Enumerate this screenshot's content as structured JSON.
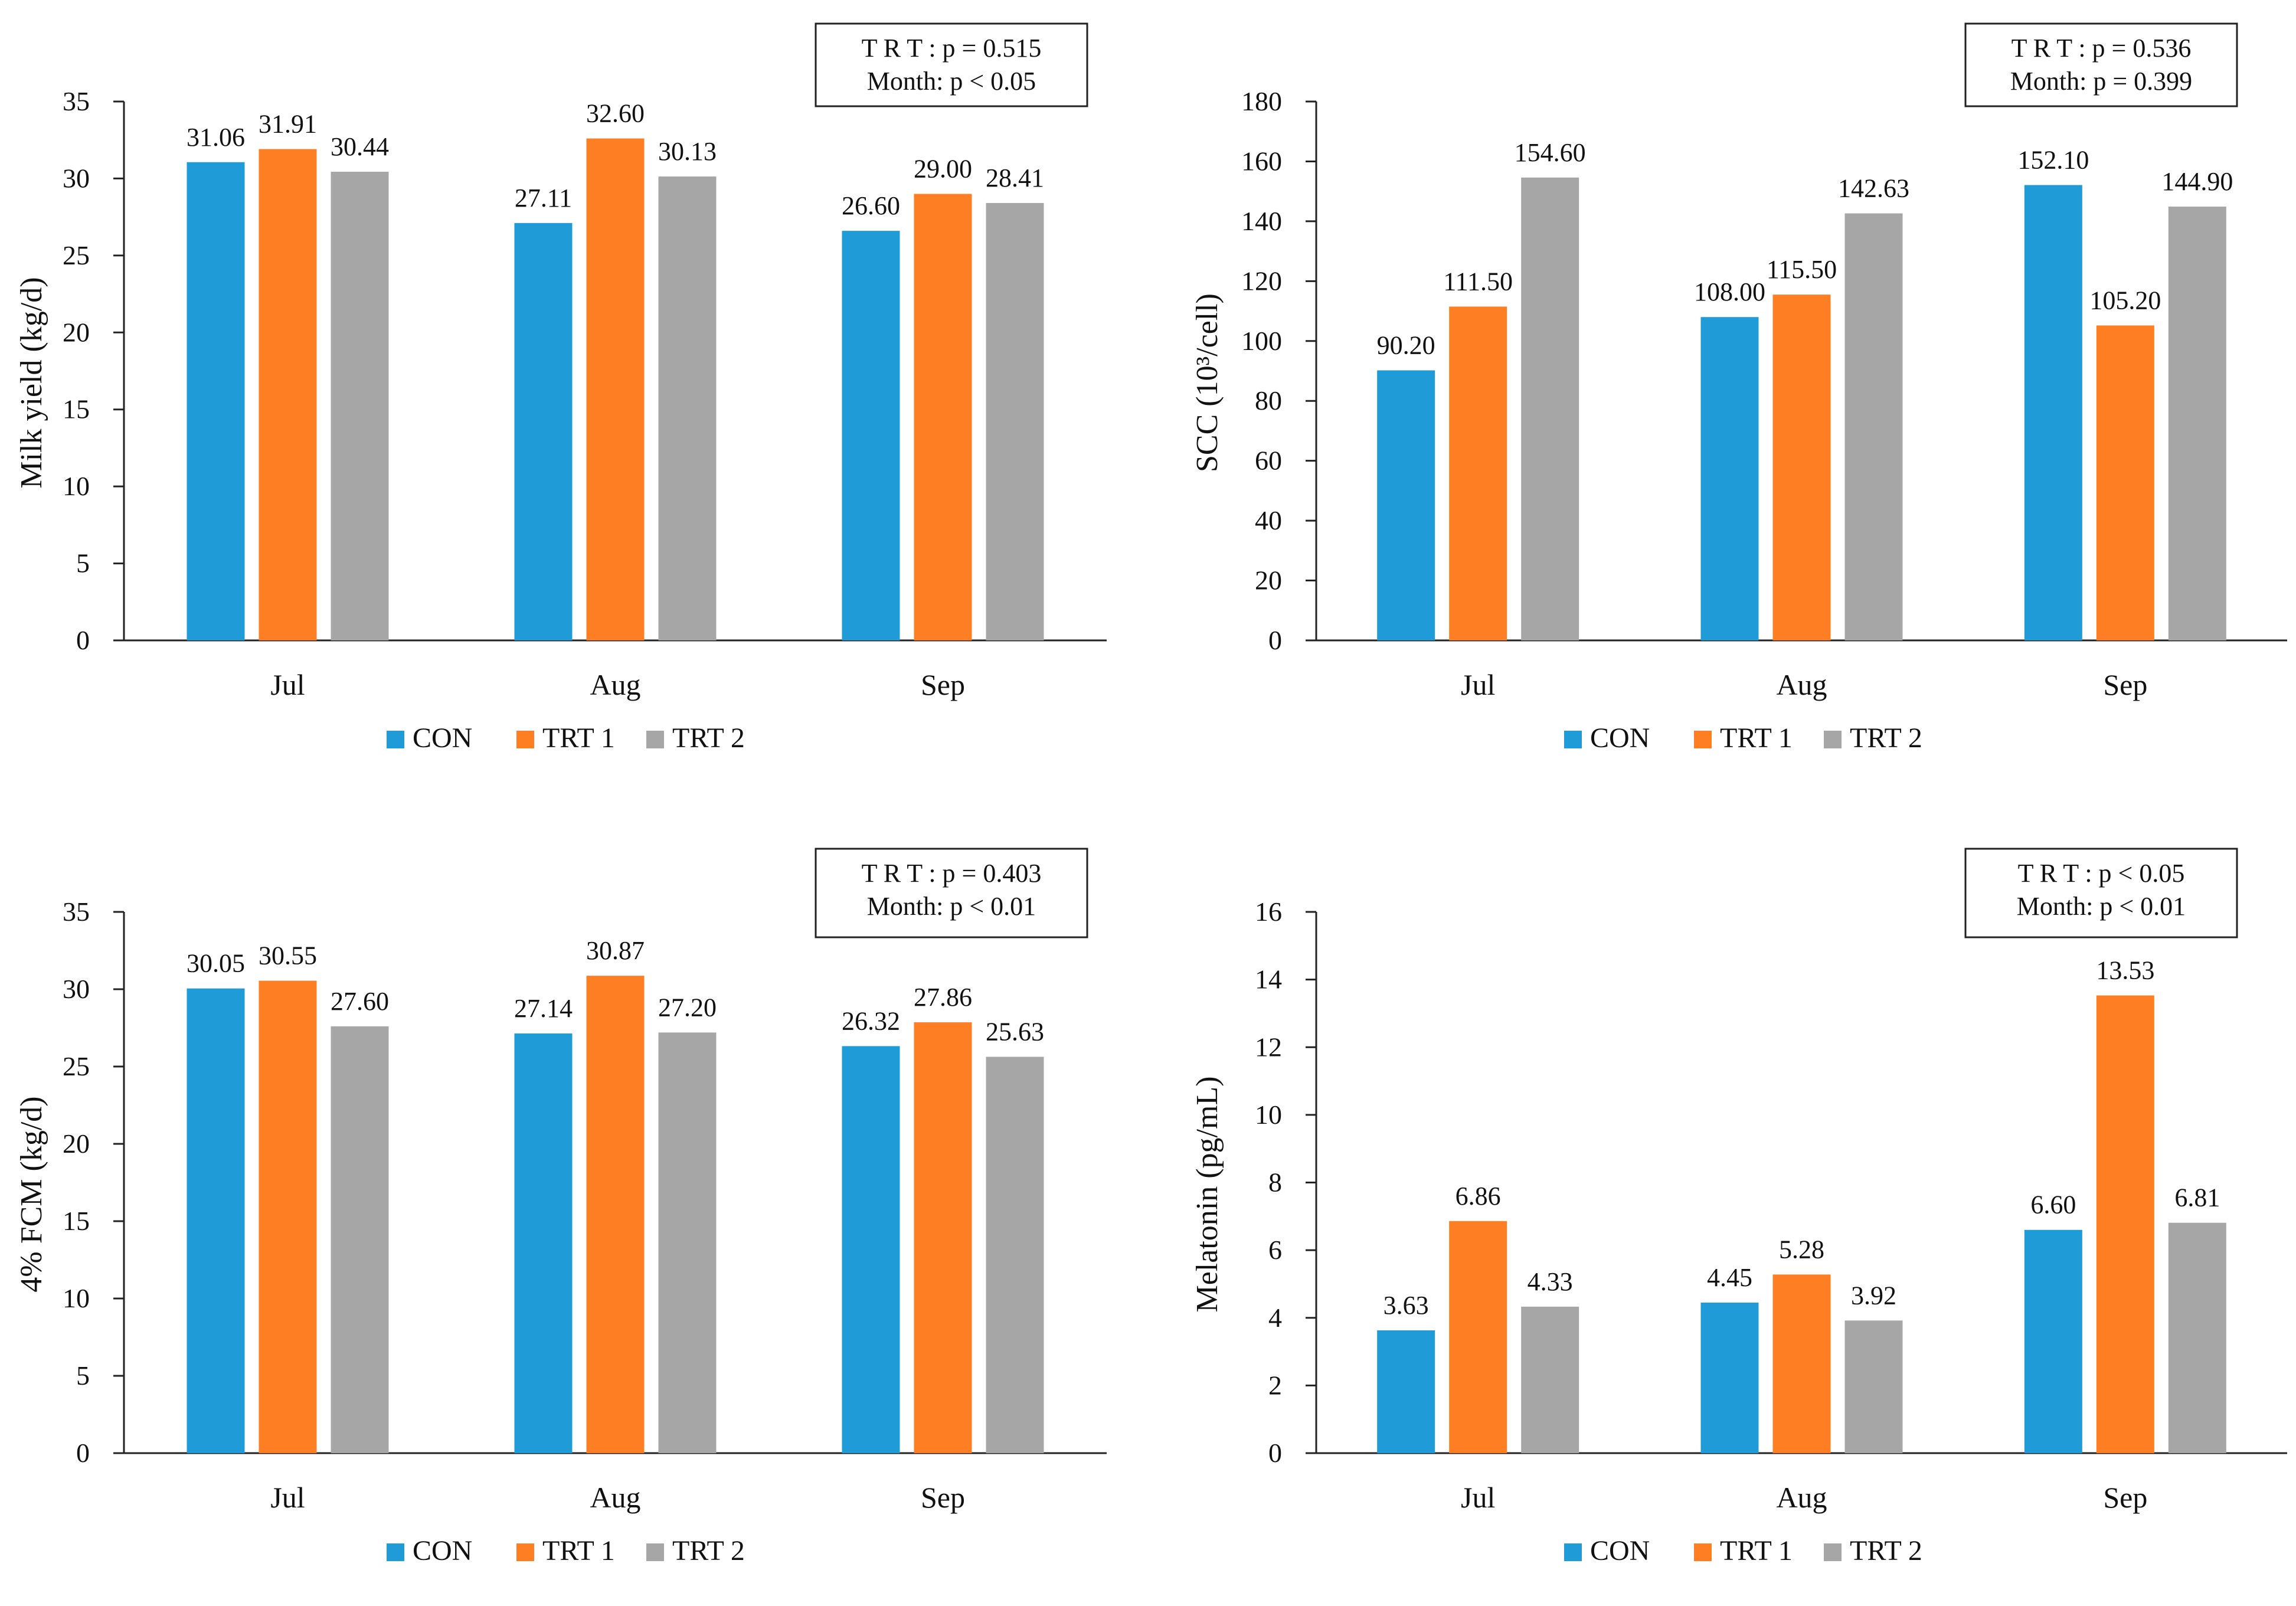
{
  "legend": [
    "CON",
    "TRT 1",
    "TRT 2"
  ],
  "colors": {
    "CON": "#1f9bd7",
    "TRT 1": "#fd7e23",
    "TRT 2": "#a6a6a6"
  },
  "chart_data": [
    {
      "type": "bar",
      "categories": [
        "Jul",
        "Aug",
        "Sep"
      ],
      "series": [
        {
          "name": "CON",
          "values": [
            31.06,
            27.11,
            26.6
          ],
          "labels": [
            "31.06",
            "27.11",
            "26.60"
          ]
        },
        {
          "name": "TRT 1",
          "values": [
            31.91,
            32.6,
            29.0
          ],
          "labels": [
            "31.91",
            "32.60",
            "29.00"
          ]
        },
        {
          "name": "TRT 2",
          "values": [
            30.44,
            30.13,
            28.41
          ],
          "labels": [
            "30.44",
            "30.13",
            "28.41"
          ]
        }
      ],
      "ylabel": "Milk yield (kg/d)",
      "ylim": [
        0,
        35
      ],
      "yticks": [
        "0",
        "5",
        "10",
        "15",
        "20",
        "25",
        "30",
        "35"
      ],
      "stats": [
        "T R T :  p = 0.515",
        "Month: p < 0.05"
      ],
      "legend_position": "bottom"
    },
    {
      "type": "bar",
      "categories": [
        "Jul",
        "Aug",
        "Sep"
      ],
      "series": [
        {
          "name": "CON",
          "values": [
            90.2,
            108.0,
            152.1
          ],
          "labels": [
            "90.20",
            "108.00",
            "152.10"
          ]
        },
        {
          "name": "TRT 1",
          "values": [
            111.5,
            115.5,
            105.2
          ],
          "labels": [
            "111.50",
            "115.50",
            "105.20"
          ]
        },
        {
          "name": "TRT 2",
          "values": [
            154.6,
            142.63,
            144.9
          ],
          "labels": [
            "154.60",
            "142.63",
            "144.90"
          ]
        }
      ],
      "ylabel": "SCC (10³/cell)",
      "ylim": [
        0,
        180
      ],
      "yticks": [
        "0",
        "20",
        "40",
        "60",
        "80",
        "100",
        "120",
        "140",
        "160",
        "180"
      ],
      "stats": [
        "T R T :  p = 0.536",
        "Month: p = 0.399"
      ],
      "legend_position": "bottom"
    },
    {
      "type": "bar",
      "categories": [
        "Jul",
        "Aug",
        "Sep"
      ],
      "series": [
        {
          "name": "CON",
          "values": [
            30.05,
            27.14,
            26.32
          ],
          "labels": [
            "30.05",
            "27.14",
            "26.32"
          ]
        },
        {
          "name": "TRT 1",
          "values": [
            30.55,
            30.87,
            27.86
          ],
          "labels": [
            "30.55",
            "30.87",
            "27.86"
          ]
        },
        {
          "name": "TRT 2",
          "values": [
            27.6,
            27.2,
            25.63
          ],
          "labels": [
            "27.60",
            "27.20",
            "25.63"
          ]
        }
      ],
      "ylabel": "4% FCM (kg/d)",
      "ylim": [
        0,
        35
      ],
      "yticks": [
        "0",
        "5",
        "10",
        "15",
        "20",
        "25",
        "30",
        "35"
      ],
      "stats": [
        "T R T :  p = 0.403",
        "Month: p < 0.01"
      ],
      "legend_position": "bottom"
    },
    {
      "type": "bar",
      "categories": [
        "Jul",
        "Aug",
        "Sep"
      ],
      "series": [
        {
          "name": "CON",
          "values": [
            3.63,
            4.45,
            6.6
          ],
          "labels": [
            "3.63",
            "4.45",
            "6.60"
          ]
        },
        {
          "name": "TRT 1",
          "values": [
            6.86,
            5.28,
            13.53
          ],
          "labels": [
            "6.86",
            "5.28",
            "13.53"
          ]
        },
        {
          "name": "TRT 2",
          "values": [
            4.33,
            3.92,
            6.81
          ],
          "labels": [
            "4.33",
            "3.92",
            "6.81"
          ]
        }
      ],
      "ylabel": "Melatonin (pg/mL)",
      "ylim": [
        0,
        16
      ],
      "yticks": [
        "0",
        "2",
        "4",
        "6",
        "8",
        "10",
        "12",
        "14",
        "16"
      ],
      "stats": [
        "T R T :  p < 0.05",
        "Month: p < 0.01"
      ],
      "legend_position": "bottom"
    }
  ]
}
